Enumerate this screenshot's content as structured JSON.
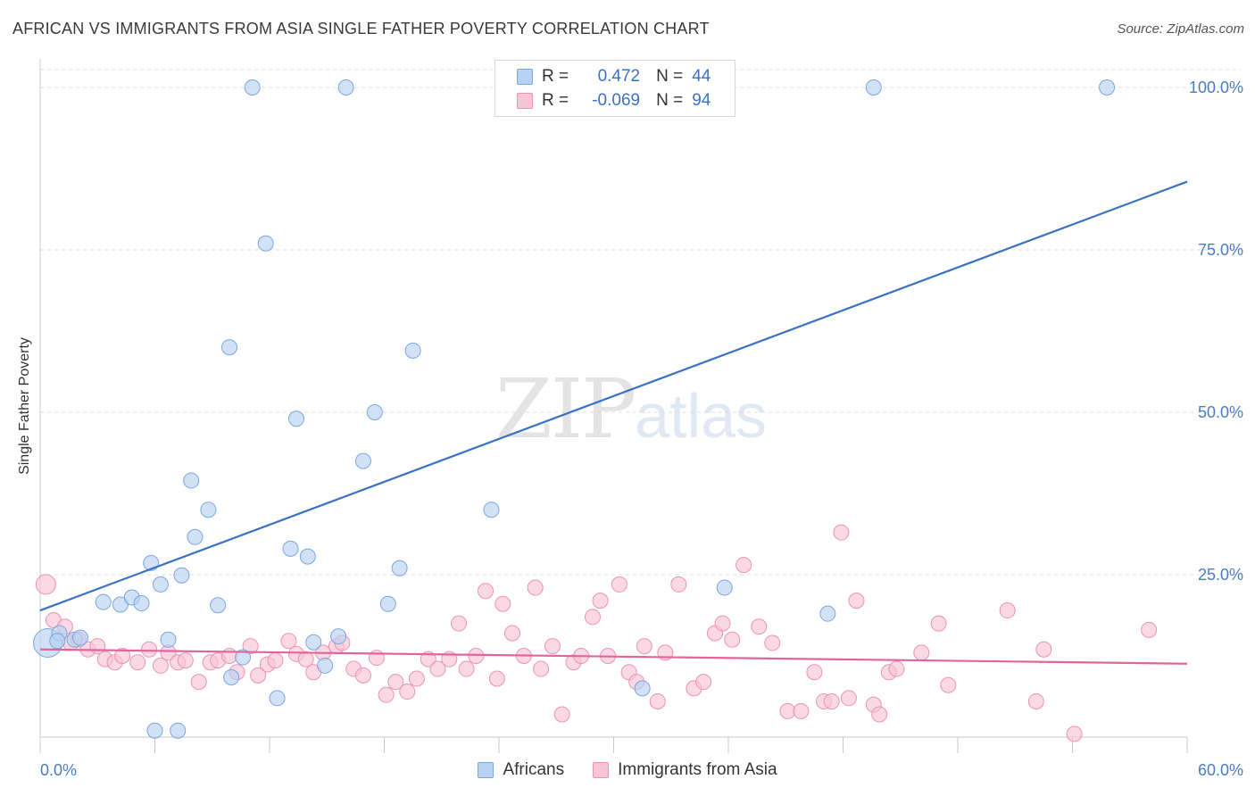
{
  "header": {
    "title": "AFRICAN VS IMMIGRANTS FROM ASIA SINGLE FATHER POVERTY CORRELATION CHART",
    "source": "Source: ZipAtlas.com"
  },
  "watermark": {
    "zip": "ZIP",
    "atlas": "atlas"
  },
  "legend": {
    "rows": [
      {
        "r_label": "R =",
        "r_value": "0.472",
        "n_label": "N =",
        "n_value": "44"
      },
      {
        "r_label": "R =",
        "r_value": "-0.069",
        "n_label": "N =",
        "n_value": "94"
      }
    ]
  },
  "bottom_legend": {
    "africans": "Africans",
    "asia": "Immigrants from Asia"
  },
  "colors": {
    "blue_fill": "#b8d2f3",
    "blue_stroke": "#7ba6df",
    "blue_line": "#3a72c4",
    "pink_fill": "#f8c5d6",
    "pink_stroke": "#ec93b2",
    "pink_line": "#e0669a",
    "tick_label": "#4a7cc6",
    "grid": "#dcdcdc"
  },
  "chart_data": {
    "type": "scatter",
    "title": "AFRICAN VS IMMIGRANTS FROM ASIA SINGLE FATHER POVERTY CORRELATION CHART",
    "xlabel": "",
    "ylabel": "Single Father Poverty",
    "xlim": [
      0,
      60
    ],
    "ylim": [
      0,
      100
    ],
    "x_tick_labels": [
      "0.0%",
      "60.0%"
    ],
    "y_tick_labels": [
      "25.0%",
      "50.0%",
      "75.0%",
      "100.0%"
    ],
    "y_tick_values": [
      25,
      50,
      75,
      100
    ],
    "grid": true,
    "legend_position": "top-center",
    "series": [
      {
        "name": "Africans",
        "r": 0.472,
        "n": 44,
        "trend": {
          "x": [
            0,
            60
          ],
          "y": [
            19.5,
            85.5
          ]
        },
        "points": [
          [
            0.4,
            14.5
          ],
          [
            1.0,
            16.0
          ],
          [
            1.8,
            15.0
          ],
          [
            2.1,
            15.3
          ],
          [
            3.3,
            20.8
          ],
          [
            4.2,
            20.4
          ],
          [
            4.8,
            21.5
          ],
          [
            5.3,
            20.6
          ],
          [
            5.8,
            26.8
          ],
          [
            6.3,
            23.5
          ],
          [
            6.7,
            15.0
          ],
          [
            7.4,
            24.9
          ],
          [
            7.9,
            39.5
          ],
          [
            8.1,
            30.8
          ],
          [
            8.8,
            35.0
          ],
          [
            9.3,
            20.3
          ],
          [
            9.9,
            60.0
          ],
          [
            10.0,
            9.2
          ],
          [
            10.6,
            12.3
          ],
          [
            11.1,
            100.0
          ],
          [
            11.8,
            76.0
          ],
          [
            12.4,
            6.0
          ],
          [
            13.1,
            29.0
          ],
          [
            13.4,
            49.0
          ],
          [
            14.0,
            27.8
          ],
          [
            14.3,
            14.6
          ],
          [
            14.9,
            11.0
          ],
          [
            15.6,
            15.5
          ],
          [
            16.0,
            100.0
          ],
          [
            16.9,
            42.5
          ],
          [
            17.5,
            50.0
          ],
          [
            18.8,
            26.0
          ],
          [
            18.2,
            20.5
          ],
          [
            19.5,
            59.5
          ],
          [
            23.6,
            35.0
          ],
          [
            25.8,
            100.0
          ],
          [
            35.8,
            23.0
          ],
          [
            7.2,
            1.0
          ],
          [
            41.2,
            19.0
          ],
          [
            43.6,
            100.0
          ],
          [
            31.5,
            7.5
          ],
          [
            6.0,
            1.0
          ],
          [
            55.8,
            100.0
          ],
          [
            0.9,
            14.8
          ]
        ]
      },
      {
        "name": "Immigrants from Asia",
        "r": -0.069,
        "n": 94,
        "trend": {
          "x": [
            0,
            60
          ],
          "y": [
            13.5,
            11.3
          ]
        },
        "points": [
          [
            0.3,
            23.5
          ],
          [
            0.7,
            18.0
          ],
          [
            1.3,
            17.0
          ],
          [
            1.6,
            14.5
          ],
          [
            2.0,
            15.0
          ],
          [
            2.5,
            13.5
          ],
          [
            3.0,
            14.0
          ],
          [
            3.4,
            12.0
          ],
          [
            3.9,
            11.5
          ],
          [
            4.3,
            12.5
          ],
          [
            5.1,
            11.5
          ],
          [
            5.7,
            13.5
          ],
          [
            6.3,
            11.0
          ],
          [
            6.7,
            13.0
          ],
          [
            7.2,
            11.5
          ],
          [
            7.6,
            11.8
          ],
          [
            8.3,
            8.5
          ],
          [
            8.9,
            11.5
          ],
          [
            9.3,
            11.8
          ],
          [
            9.9,
            12.5
          ],
          [
            10.3,
            10.0
          ],
          [
            11.0,
            14.0
          ],
          [
            11.4,
            9.5
          ],
          [
            11.9,
            11.2
          ],
          [
            12.3,
            11.8
          ],
          [
            13.0,
            14.8
          ],
          [
            13.4,
            12.8
          ],
          [
            13.9,
            12.0
          ],
          [
            14.3,
            10.0
          ],
          [
            14.8,
            13.0
          ],
          [
            15.5,
            14.0
          ],
          [
            15.8,
            14.5
          ],
          [
            16.4,
            10.5
          ],
          [
            16.9,
            9.5
          ],
          [
            17.6,
            12.2
          ],
          [
            18.1,
            6.5
          ],
          [
            18.6,
            8.5
          ],
          [
            19.2,
            7.0
          ],
          [
            19.7,
            9.0
          ],
          [
            20.3,
            12.0
          ],
          [
            20.8,
            10.5
          ],
          [
            21.4,
            12.0
          ],
          [
            21.9,
            17.5
          ],
          [
            22.3,
            10.5
          ],
          [
            22.8,
            12.5
          ],
          [
            23.3,
            22.5
          ],
          [
            23.9,
            9.0
          ],
          [
            24.2,
            20.5
          ],
          [
            24.7,
            16.0
          ],
          [
            25.3,
            12.5
          ],
          [
            25.9,
            23.0
          ],
          [
            26.2,
            10.5
          ],
          [
            26.8,
            14.0
          ],
          [
            27.3,
            3.5
          ],
          [
            27.9,
            11.5
          ],
          [
            28.3,
            12.5
          ],
          [
            28.9,
            18.5
          ],
          [
            29.3,
            21.0
          ],
          [
            29.7,
            12.5
          ],
          [
            30.3,
            23.5
          ],
          [
            30.8,
            10.0
          ],
          [
            31.2,
            8.5
          ],
          [
            31.6,
            14.0
          ],
          [
            32.3,
            5.5
          ],
          [
            32.7,
            13.0
          ],
          [
            33.4,
            23.5
          ],
          [
            34.2,
            7.5
          ],
          [
            34.7,
            8.5
          ],
          [
            35.3,
            16.0
          ],
          [
            35.7,
            17.5
          ],
          [
            36.2,
            15.0
          ],
          [
            36.8,
            26.5
          ],
          [
            37.6,
            17.0
          ],
          [
            38.3,
            14.5
          ],
          [
            39.1,
            4.0
          ],
          [
            39.8,
            4.0
          ],
          [
            40.5,
            10.0
          ],
          [
            41.0,
            5.5
          ],
          [
            41.4,
            5.5
          ],
          [
            41.9,
            31.5
          ],
          [
            42.3,
            6.0
          ],
          [
            42.7,
            21.0
          ],
          [
            43.6,
            5.0
          ],
          [
            43.9,
            3.5
          ],
          [
            44.4,
            10.0
          ],
          [
            44.8,
            10.5
          ],
          [
            46.1,
            13.0
          ],
          [
            47.0,
            17.5
          ],
          [
            47.5,
            8.0
          ],
          [
            50.6,
            19.5
          ],
          [
            52.1,
            5.5
          ],
          [
            52.5,
            13.5
          ],
          [
            54.1,
            0.5
          ],
          [
            58.0,
            16.5
          ]
        ]
      }
    ]
  }
}
